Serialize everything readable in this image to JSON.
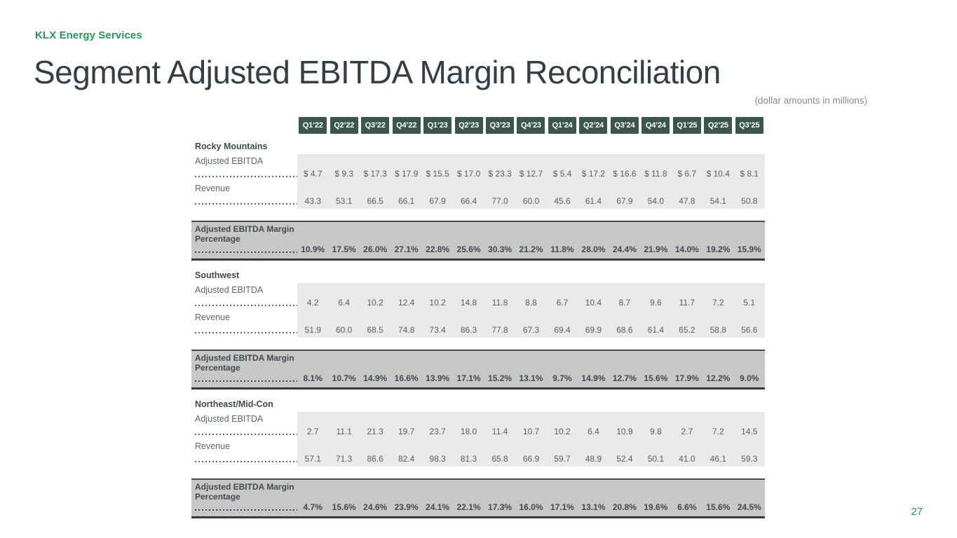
{
  "brand": {
    "name": "KLX Energy Services",
    "color": "#1e9e52"
  },
  "slide": {
    "title": "Segment Adjusted EBITDA Margin Reconciliation",
    "title_color": "#333f48",
    "subtitle": "(dollar amounts in millions)",
    "page_number": "27"
  },
  "colors": {
    "header_box": "#3b564b",
    "panel_bg": "#e9e9e8",
    "band_bg": "#c7c7c5",
    "band_border": "#3a3a3a",
    "label_text": "#5b6770",
    "value_text": "#555f66",
    "dark_text": "#3f4a52",
    "accent_green": "#1e9e52"
  },
  "table": {
    "quarters": [
      "Q1’22",
      "Q2’22",
      "Q3’22",
      "Q4’22",
      "Q1’23",
      "Q2’23",
      "Q3’23",
      "Q4’23",
      "Q1’24",
      "Q2’24",
      "Q3’24",
      "Q4’24",
      "Q1’25",
      "Q2’25",
      "Q3’25"
    ],
    "margin_label": "Adjusted EBITDA Margin Percentage",
    "segments": [
      {
        "name": "Rocky Mountains",
        "rows": [
          {
            "label": "Adjusted EBITDA",
            "values": [
              "$ 4.7",
              "$ 9.3",
              "$ 17.3",
              "$ 17.9",
              "$ 15.5",
              "$ 17.0",
              "$ 23.3",
              "$ 12.7",
              "$ 5.4",
              "$ 17.2",
              "$ 16.6",
              "$ 11.8",
              "$ 6.7",
              "$ 10.4",
              "$ 8.1"
            ]
          },
          {
            "label": "Revenue",
            "values": [
              "43.3",
              "53.1",
              "66.5",
              "66.1",
              "67.9",
              "66.4",
              "77.0",
              "60.0",
              "45.6",
              "61.4",
              "67.9",
              "54.0",
              "47.8",
              "54.1",
              "50.8"
            ]
          }
        ],
        "margin_values": [
          "10.9%",
          "17.5%",
          "26.0%",
          "27.1%",
          "22.8%",
          "25.6%",
          "30.3%",
          "21.2%",
          "11.8%",
          "28.0%",
          "24.4%",
          "21.9%",
          "14.0%",
          "19.2%",
          "15.9%"
        ]
      },
      {
        "name": "Southwest",
        "rows": [
          {
            "label": "Adjusted EBITDA",
            "values": [
              "4.2",
              "6.4",
              "10.2",
              "12.4",
              "10.2",
              "14.8",
              "11.8",
              "8.8",
              "6.7",
              "10.4",
              "8.7",
              "9.6",
              "11.7",
              "7.2",
              "5.1"
            ]
          },
          {
            "label": "Revenue",
            "values": [
              "51.9",
              "60.0",
              "68.5",
              "74.8",
              "73.4",
              "86.3",
              "77.8",
              "67.3",
              "69.4",
              "69.9",
              "68.6",
              "61.4",
              "65.2",
              "58.8",
              "56.6"
            ]
          }
        ],
        "margin_values": [
          "8.1%",
          "10.7%",
          "14.9%",
          "16.6%",
          "13.9%",
          "17.1%",
          "15.2%",
          "13.1%",
          "9.7%",
          "14.9%",
          "12.7%",
          "15.6%",
          "17.9%",
          "12.2%",
          "9.0%"
        ]
      },
      {
        "name": "Northeast/Mid-Con",
        "rows": [
          {
            "label": "Adjusted EBITDA",
            "values": [
              "2.7",
              "11.1",
              "21.3",
              "19.7",
              "23.7",
              "18.0",
              "11.4",
              "10.7",
              "10.2",
              "6.4",
              "10.9",
              "9.8",
              "2.7",
              "7.2",
              "14.5"
            ]
          },
          {
            "label": "Revenue",
            "values": [
              "57.1",
              "71.3",
              "86.6",
              "82.4",
              "98.3",
              "81.3",
              "65.8",
              "66.9",
              "59.7",
              "48.9",
              "52.4",
              "50.1",
              "41.0",
              "46.1",
              "59.3"
            ]
          }
        ],
        "margin_values": [
          "4.7%",
          "15.6%",
          "24.6%",
          "23.9%",
          "24.1%",
          "22.1%",
          "17.3%",
          "16.0%",
          "17.1%",
          "13.1%",
          "20.8%",
          "19.6%",
          "6.6%",
          "15.6%",
          "24.5%"
        ]
      }
    ]
  }
}
